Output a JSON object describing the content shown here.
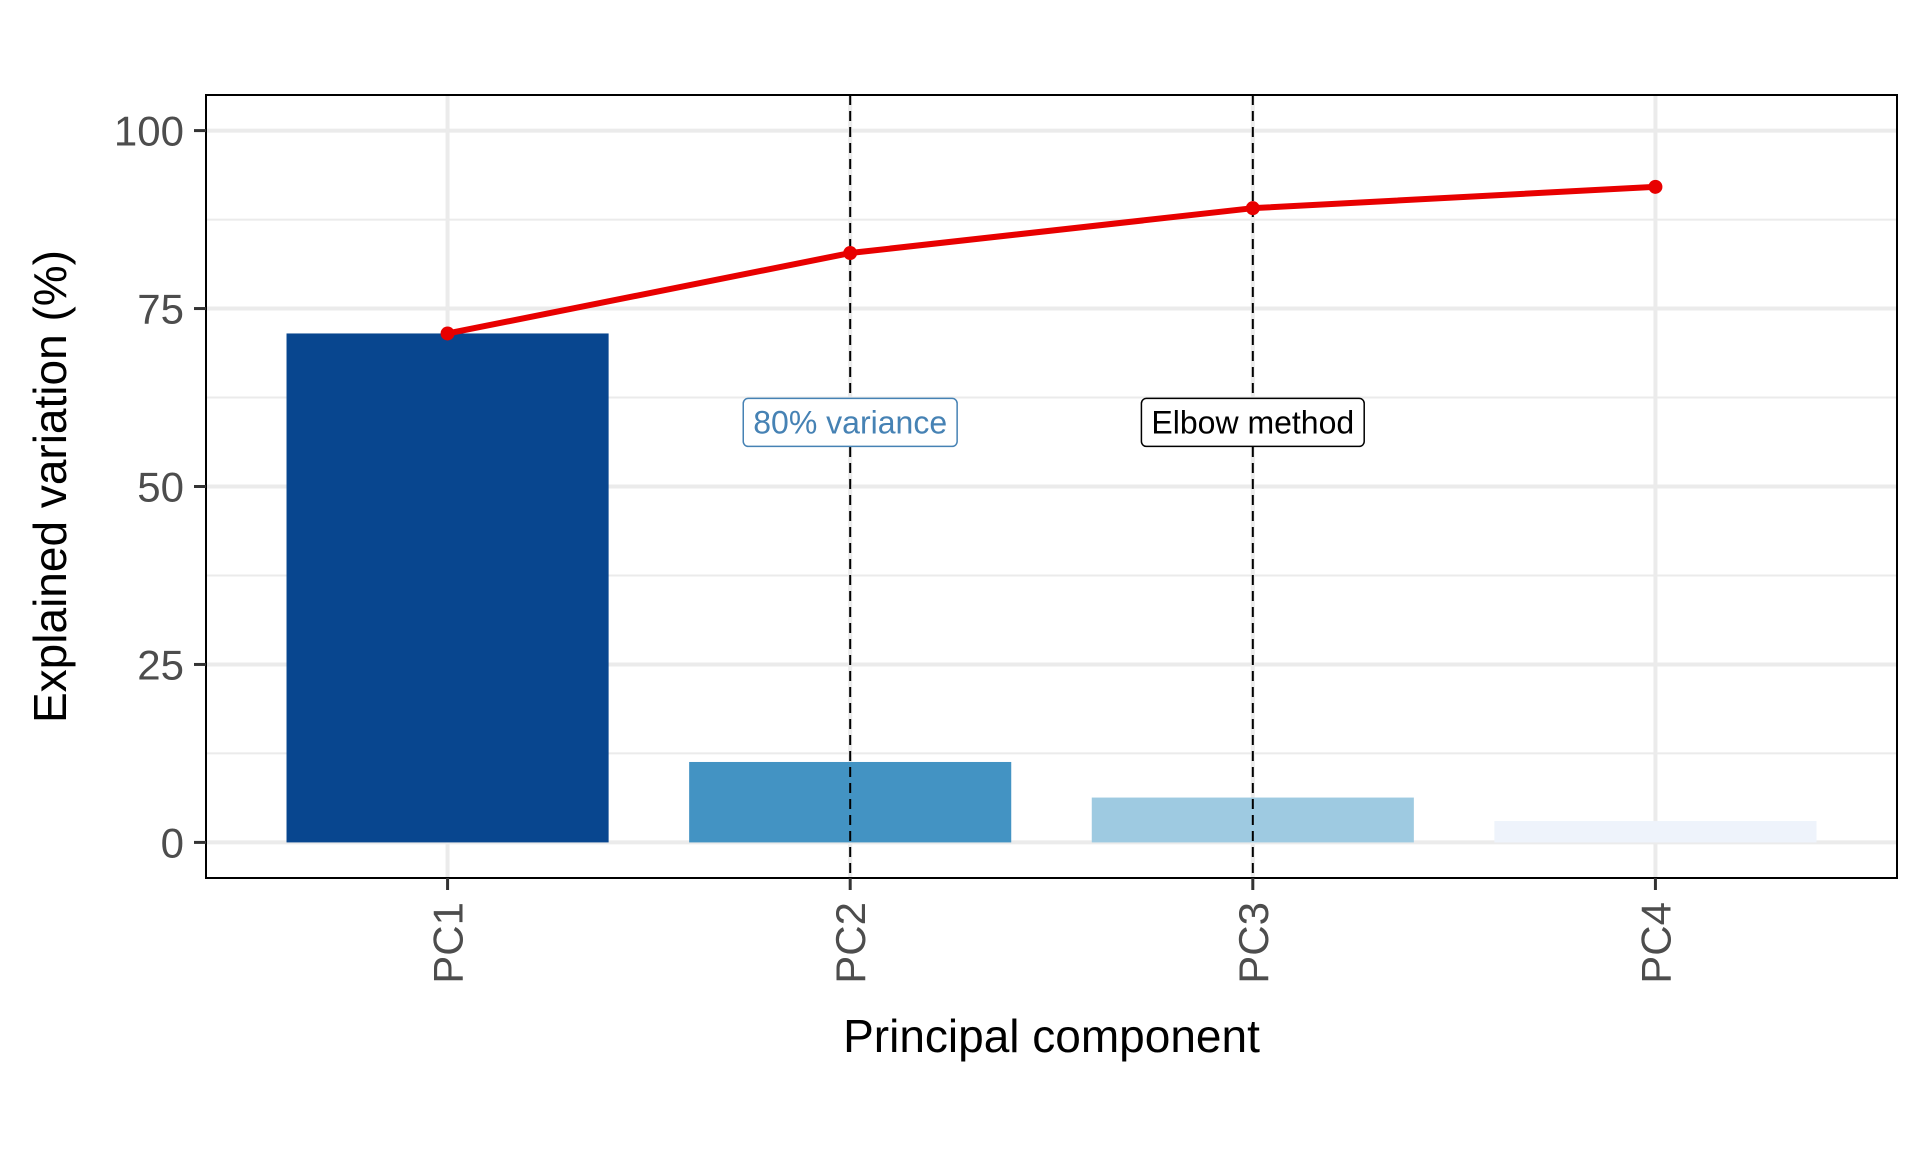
{
  "chart_data": {
    "type": "bar",
    "categories": [
      "PC1",
      "PC2",
      "PC3",
      "PC4"
    ],
    "series": [
      {
        "type": "bar",
        "values": [
          71.5,
          11.3,
          6.3,
          3.0
        ]
      },
      {
        "type": "line",
        "values": [
          71.5,
          82.8,
          89.1,
          92.1
        ]
      }
    ],
    "bar_colors": [
      "#08468f",
      "#4393c3",
      "#9ecae1",
      "#eef3fb"
    ],
    "line_color": "#e80000",
    "xlabel": "Principal component",
    "ylabel": "Explained variation (%)",
    "ylim": [
      -5,
      105
    ],
    "yticks": [
      0,
      25,
      50,
      75,
      100
    ],
    "grid": true,
    "vlines": [
      {
        "at": "PC2",
        "style": "dashed"
      },
      {
        "at": "PC3",
        "style": "dashed"
      }
    ],
    "annotations": [
      {
        "text": "80% variance",
        "at": "PC2",
        "y": 59,
        "color": "#4682b4"
      },
      {
        "text": "Elbow method",
        "at": "PC3",
        "y": 59,
        "color": "#000000"
      }
    ]
  }
}
